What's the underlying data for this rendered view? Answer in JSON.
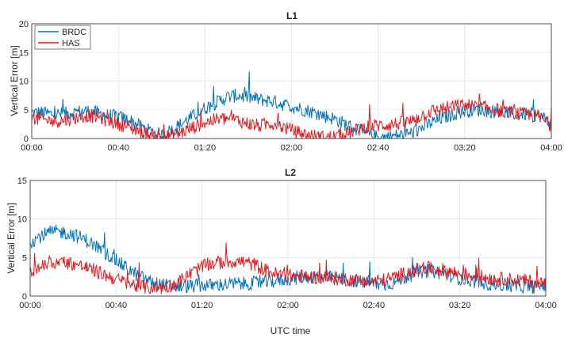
{
  "colors": {
    "BRDC": "#0072BD",
    "HAS": "#E8171B"
  },
  "shared_xlabel": "UTC time",
  "chart_data": [
    {
      "type": "line",
      "title": "L1",
      "xlabel": "",
      "ylabel": "Vertical Error [m]",
      "x_ticks": [
        "00:00",
        "00:40",
        "01:20",
        "02:00",
        "02:40",
        "03:20",
        "04:00"
      ],
      "y_ticks": [
        "0",
        "5",
        "10",
        "15",
        "20"
      ],
      "xlim_minutes": [
        0,
        240
      ],
      "ylim": [
        0,
        20
      ],
      "grid": true,
      "legend": "top-left",
      "legend_entries": [
        "BRDC",
        "HAS"
      ],
      "series": [
        {
          "name": "BRDC",
          "x_minutes": [
            0,
            5,
            10,
            15,
            20,
            25,
            30,
            35,
            40,
            45,
            50,
            55,
            60,
            65,
            70,
            75,
            80,
            85,
            90,
            95,
            100,
            105,
            110,
            115,
            120,
            125,
            130,
            135,
            140,
            145,
            150,
            155,
            160,
            165,
            170,
            175,
            180,
            185,
            190,
            195,
            200,
            205,
            210,
            215,
            220,
            225,
            230,
            235,
            240
          ],
          "values": [
            4.5,
            4.5,
            4.2,
            4.3,
            4.6,
            4.8,
            4.5,
            4.0,
            3.8,
            3.2,
            2.2,
            1.2,
            0.6,
            1.5,
            2.8,
            4.0,
            5.3,
            6.2,
            7.2,
            7.5,
            7.2,
            6.8,
            6.6,
            6.1,
            5.6,
            5.1,
            4.6,
            4.0,
            3.4,
            2.5,
            1.6,
            0.8,
            0.2,
            0.3,
            0.6,
            0.9,
            1.8,
            2.8,
            3.6,
            4.3,
            4.8,
            5.0,
            4.9,
            4.6,
            4.4,
            4.2,
            4.3,
            4.0,
            2.5
          ]
        },
        {
          "name": "HAS",
          "x_minutes": [
            0,
            5,
            10,
            15,
            20,
            25,
            30,
            35,
            40,
            45,
            50,
            55,
            60,
            65,
            70,
            75,
            80,
            85,
            90,
            95,
            100,
            105,
            110,
            115,
            120,
            125,
            130,
            135,
            140,
            145,
            150,
            155,
            160,
            165,
            170,
            175,
            180,
            185,
            190,
            195,
            200,
            205,
            210,
            215,
            220,
            225,
            230,
            235,
            240
          ],
          "values": [
            3.5,
            3.3,
            3.0,
            3.2,
            3.6,
            4.0,
            3.8,
            3.2,
            2.6,
            2.0,
            1.2,
            0.6,
            0.3,
            0.5,
            1.2,
            2.0,
            2.8,
            3.3,
            3.5,
            3.2,
            2.6,
            2.2,
            2.7,
            2.2,
            1.4,
            0.8,
            0.4,
            0.2,
            0.3,
            0.7,
            1.5,
            2.1,
            2.3,
            2.4,
            2.6,
            3.0,
            4.0,
            4.8,
            5.2,
            5.6,
            5.8,
            5.6,
            5.4,
            5.0,
            4.6,
            4.3,
            4.1,
            3.6,
            2.2
          ]
        }
      ]
    },
    {
      "type": "line",
      "title": "L2",
      "xlabel": "UTC time",
      "ylabel": "Vertical Error [m]",
      "x_ticks": [
        "00:00",
        "00:40",
        "01:20",
        "02:00",
        "02:40",
        "03:20",
        "04:00"
      ],
      "y_ticks": [
        "0",
        "5",
        "10",
        "15"
      ],
      "xlim_minutes": [
        0,
        240
      ],
      "ylim": [
        0,
        15
      ],
      "grid": true,
      "series": [
        {
          "name": "BRDC",
          "x_minutes": [
            0,
            5,
            10,
            15,
            20,
            25,
            30,
            35,
            40,
            45,
            50,
            55,
            60,
            65,
            70,
            75,
            80,
            85,
            90,
            95,
            100,
            105,
            110,
            115,
            120,
            125,
            130,
            135,
            140,
            145,
            150,
            155,
            160,
            165,
            170,
            175,
            180,
            185,
            190,
            195,
            200,
            205,
            210,
            215,
            220,
            225,
            230,
            235,
            240
          ],
          "values": [
            7.0,
            7.8,
            8.3,
            8.3,
            8.0,
            7.4,
            6.6,
            5.6,
            4.6,
            3.6,
            2.7,
            2.0,
            1.5,
            1.3,
            1.2,
            1.3,
            1.4,
            1.4,
            1.5,
            1.6,
            1.6,
            1.7,
            1.8,
            2.0,
            2.2,
            2.4,
            2.5,
            2.5,
            2.4,
            2.2,
            2.0,
            1.8,
            1.6,
            1.5,
            1.8,
            2.5,
            3.1,
            3.3,
            3.1,
            2.7,
            2.3,
            2.0,
            1.8,
            1.5,
            1.4,
            1.3,
            1.2,
            1.2,
            1.5
          ]
        },
        {
          "name": "HAS",
          "x_minutes": [
            0,
            5,
            10,
            15,
            20,
            25,
            30,
            35,
            40,
            45,
            50,
            55,
            60,
            65,
            70,
            75,
            80,
            85,
            90,
            95,
            100,
            105,
            110,
            115,
            120,
            125,
            130,
            135,
            140,
            145,
            150,
            155,
            160,
            165,
            170,
            175,
            180,
            185,
            190,
            195,
            200,
            205,
            210,
            215,
            220,
            225,
            230,
            235,
            240
          ],
          "values": [
            3.0,
            3.8,
            4.3,
            4.4,
            4.2,
            3.8,
            3.3,
            2.7,
            2.2,
            1.7,
            1.3,
            1.1,
            1.1,
            1.3,
            2.0,
            3.0,
            3.8,
            4.2,
            4.4,
            4.5,
            4.4,
            4.0,
            3.3,
            2.8,
            2.6,
            2.6,
            2.5,
            2.4,
            2.3,
            2.2,
            2.1,
            2.0,
            2.0,
            2.1,
            2.5,
            3.0,
            3.4,
            3.6,
            3.5,
            3.2,
            2.9,
            2.7,
            2.5,
            2.3,
            2.2,
            2.1,
            2.0,
            1.8,
            1.5
          ]
        }
      ]
    }
  ]
}
